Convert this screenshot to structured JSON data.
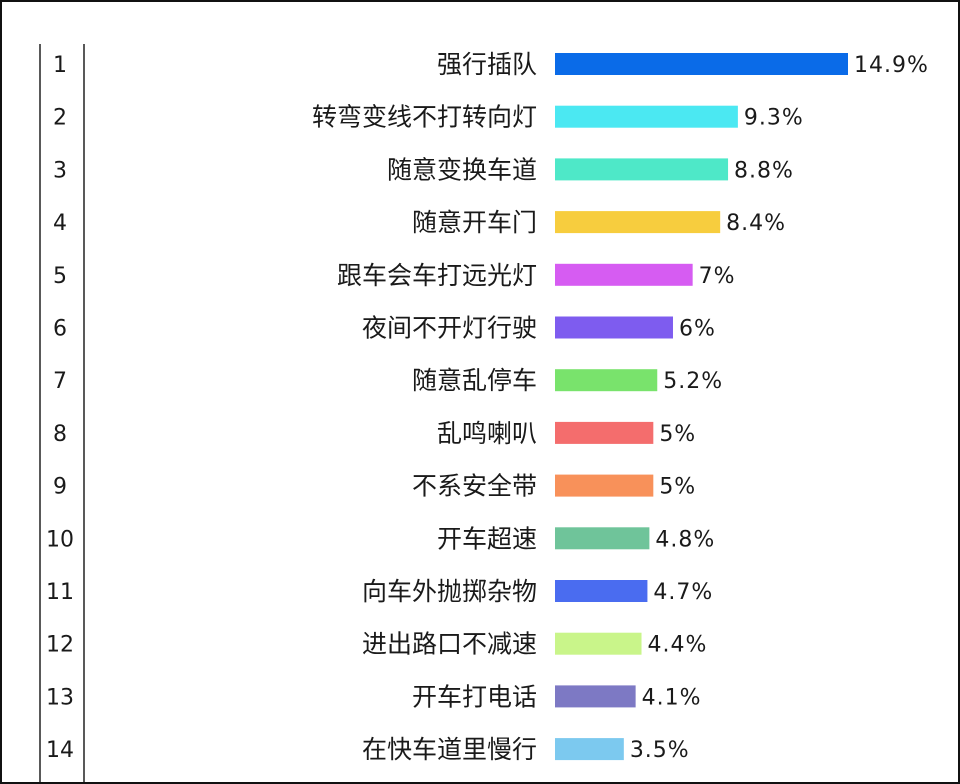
{
  "chart_data": {
    "type": "bar",
    "orientation": "horizontal",
    "title": "",
    "xlabel": "",
    "ylabel": "",
    "xlim": [
      0,
      15
    ],
    "grid": false,
    "ranks": [
      "1",
      "2",
      "3",
      "4",
      "5",
      "6",
      "7",
      "8",
      "9",
      "10",
      "11",
      "12",
      "13",
      "14"
    ],
    "categories": [
      "强行插队",
      "转弯变线不打转向灯",
      "随意变换车道",
      "随意开车门",
      "跟车会车打远光灯",
      "夜间不开灯行驶",
      "随意乱停车",
      "乱鸣喇叭",
      "不系安全带",
      "开车超速",
      "向车外抛掷杂物",
      "进出路口不减速",
      "开车打电话",
      "在快车道里慢行"
    ],
    "values": [
      14.9,
      9.3,
      8.8,
      8.4,
      7,
      6,
      5.2,
      5,
      5,
      4.8,
      4.7,
      4.4,
      4.1,
      3.5
    ],
    "value_labels": [
      "14.9%",
      "9.3%",
      "8.8%",
      "8.4%",
      "7%",
      "6%",
      "5.2%",
      "5%",
      "5%",
      "4.8%",
      "4.7%",
      "4.4%",
      "4.1%",
      "3.5%"
    ],
    "colors": [
      "#0a6be8",
      "#4be8f2",
      "#4ee8c8",
      "#f7cd3e",
      "#d65cf2",
      "#7e5cef",
      "#79e36c",
      "#f46d6d",
      "#f8915a",
      "#6fc49a",
      "#4a6cf0",
      "#c9f58a",
      "#7d79c4",
      "#7cc9ef"
    ]
  }
}
